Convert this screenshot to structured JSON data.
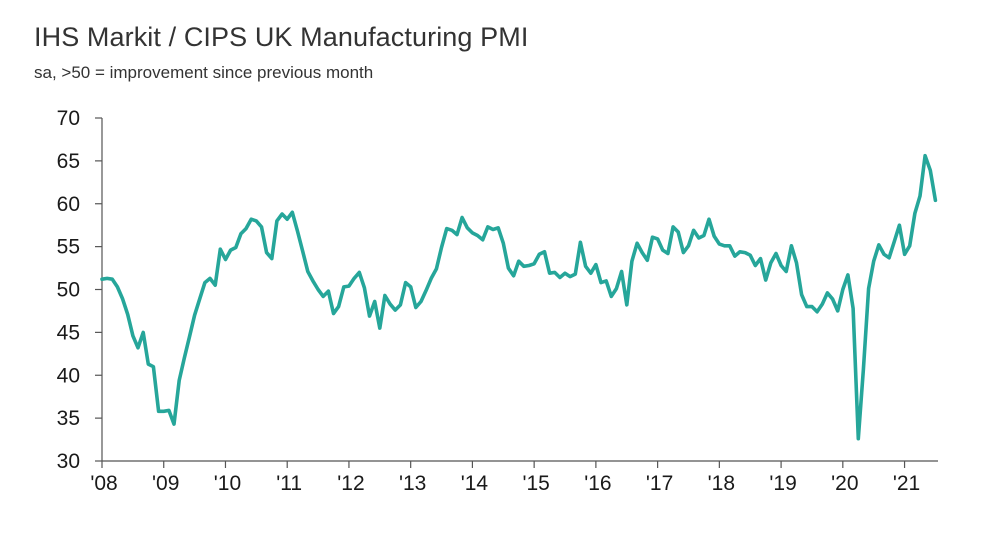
{
  "chart_data": {
    "type": "line",
    "title": "IHS Markit / CIPS UK Manufacturing PMI",
    "subtitle": "sa, >50 = improvement since previous month",
    "xlabel": "",
    "ylabel": "",
    "ylim": [
      30,
      70
    ],
    "yticks": [
      30,
      35,
      40,
      45,
      50,
      55,
      60,
      65,
      70
    ],
    "xticks": [
      "'08",
      "'09",
      "'10",
      "'11",
      "'12",
      "'13",
      "'14",
      "'15",
      "'16",
      "'17",
      "'18",
      "'19",
      "'20",
      "'21"
    ],
    "grid": false,
    "line_color": "#26a69a",
    "series": [
      {
        "x": [
          2008.0,
          2008.083,
          2008.167,
          2008.25,
          2008.333,
          2008.417,
          2008.5,
          2008.583,
          2008.667,
          2008.75,
          2008.833,
          2008.917,
          2009.0,
          2009.083,
          2009.167,
          2009.25,
          2009.333,
          2009.417,
          2009.5,
          2009.583,
          2009.667,
          2009.75,
          2009.833,
          2009.917,
          2010.0,
          2010.083,
          2010.167,
          2010.25,
          2010.333,
          2010.417,
          2010.5,
          2010.583,
          2010.667,
          2010.75,
          2010.833,
          2010.917,
          2011.0,
          2011.083,
          2011.167,
          2011.25,
          2011.333,
          2011.417,
          2011.5,
          2011.583,
          2011.667,
          2011.75,
          2011.833,
          2011.917,
          2012.0,
          2012.083,
          2012.167,
          2012.25,
          2012.333,
          2012.417,
          2012.5,
          2012.583,
          2012.667,
          2012.75,
          2012.833,
          2012.917,
          2013.0,
          2013.083,
          2013.167,
          2013.25,
          2013.333,
          2013.417,
          2013.5,
          2013.583,
          2013.667,
          2013.75,
          2013.833,
          2013.917,
          2014.0,
          2014.083,
          2014.167,
          2014.25,
          2014.333,
          2014.417,
          2014.5,
          2014.583,
          2014.667,
          2014.75,
          2014.833,
          2014.917,
          2015.0,
          2015.083,
          2015.167,
          2015.25,
          2015.333,
          2015.417,
          2015.5,
          2015.583,
          2015.667,
          2015.75,
          2015.833,
          2015.917,
          2016.0,
          2016.083,
          2016.167,
          2016.25,
          2016.333,
          2016.417,
          2016.5,
          2016.583,
          2016.667,
          2016.75,
          2016.833,
          2016.917,
          2017.0,
          2017.083,
          2017.167,
          2017.25,
          2017.333,
          2017.417,
          2017.5,
          2017.583,
          2017.667,
          2017.75,
          2017.833,
          2017.917,
          2018.0,
          2018.083,
          2018.167,
          2018.25,
          2018.333,
          2018.417,
          2018.5,
          2018.583,
          2018.667,
          2018.75,
          2018.833,
          2018.917,
          2019.0,
          2019.083,
          2019.167,
          2019.25,
          2019.333,
          2019.417,
          2019.5,
          2019.583,
          2019.667,
          2019.75,
          2019.833,
          2019.917,
          2020.0,
          2020.083,
          2020.167,
          2020.25,
          2020.333,
          2020.417,
          2020.5,
          2020.583,
          2020.667,
          2020.75,
          2020.833,
          2020.917,
          2021.0,
          2021.083,
          2021.167,
          2021.25,
          2021.333,
          2021.417,
          2021.5
        ],
        "values": [
          51.2,
          51.3,
          51.2,
          50.3,
          48.9,
          47.1,
          44.6,
          43.2,
          45.0,
          41.3,
          41.0,
          35.8,
          35.8,
          35.9,
          34.3,
          39.4,
          42.0,
          44.5,
          47.0,
          48.9,
          50.8,
          51.3,
          50.5,
          54.7,
          53.5,
          54.6,
          54.9,
          56.5,
          57.1,
          58.2,
          58.0,
          57.3,
          54.3,
          53.6,
          58.0,
          58.8,
          58.2,
          59.0,
          56.8,
          54.5,
          52.1,
          51.0,
          50.0,
          49.2,
          49.8,
          47.2,
          48.0,
          50.3,
          50.4,
          51.3,
          52.0,
          50.2,
          46.9,
          48.6,
          45.5,
          49.3,
          48.3,
          47.6,
          48.2,
          50.8,
          50.3,
          47.9,
          48.6,
          49.9,
          51.3,
          52.4,
          54.9,
          57.1,
          56.9,
          56.4,
          58.4,
          57.2,
          56.6,
          56.3,
          55.8,
          57.3,
          57.0,
          57.2,
          55.4,
          52.5,
          51.6,
          53.3,
          52.7,
          52.8,
          53.0,
          54.1,
          54.4,
          51.9,
          52.0,
          51.4,
          51.9,
          51.5,
          51.8,
          55.5,
          52.7,
          51.9,
          52.9,
          50.8,
          51.0,
          49.2,
          50.1,
          52.1,
          48.2,
          53.3,
          55.4,
          54.3,
          53.4,
          56.1,
          55.9,
          54.6,
          54.2,
          57.3,
          56.7,
          54.3,
          55.1,
          56.9,
          56.0,
          56.3,
          58.2,
          56.2,
          55.3,
          55.1,
          55.1,
          53.9,
          54.4,
          54.3,
          54.0,
          52.8,
          53.6,
          51.1,
          53.1,
          54.2,
          52.8,
          52.1,
          55.1,
          53.1,
          49.4,
          48.0,
          48.0,
          47.4,
          48.3,
          49.6,
          48.9,
          47.5,
          50.0,
          51.7,
          47.8,
          32.6,
          40.7,
          50.1,
          53.3,
          55.2,
          54.1,
          53.7,
          55.6,
          57.5,
          54.1,
          55.1,
          58.9,
          60.9,
          65.6,
          63.9,
          60.4
        ]
      }
    ]
  }
}
